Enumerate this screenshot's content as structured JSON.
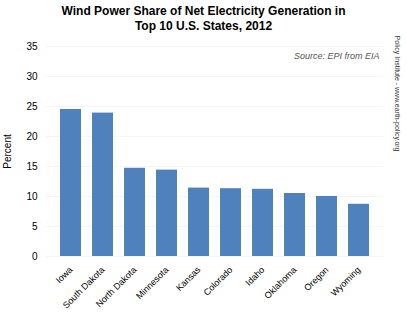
{
  "chart_data": {
    "type": "bar",
    "title": "Wind Power Share of Net Electricity Generation in\nTop 10 U.S. States, 2012",
    "categories": [
      "Iowa",
      "South Dakota",
      "North Dakota",
      "Minnesota",
      "Kansas",
      "Colorado",
      "Idaho",
      "Oklahoma",
      "Oregon",
      "Wyoming"
    ],
    "values": [
      24.5,
      23.9,
      14.7,
      14.4,
      11.4,
      11.3,
      11.2,
      10.5,
      10.0,
      8.7
    ],
    "color": "#4f81bd",
    "ylabel": "Percent",
    "ylim": [
      0,
      35
    ],
    "yticks": [
      0,
      5,
      10,
      15,
      20,
      25,
      30,
      35
    ],
    "grid": true,
    "annotations": [
      "Source: EPI from EIA",
      "Earth Policy Institute - www.earth-policy.org"
    ]
  }
}
